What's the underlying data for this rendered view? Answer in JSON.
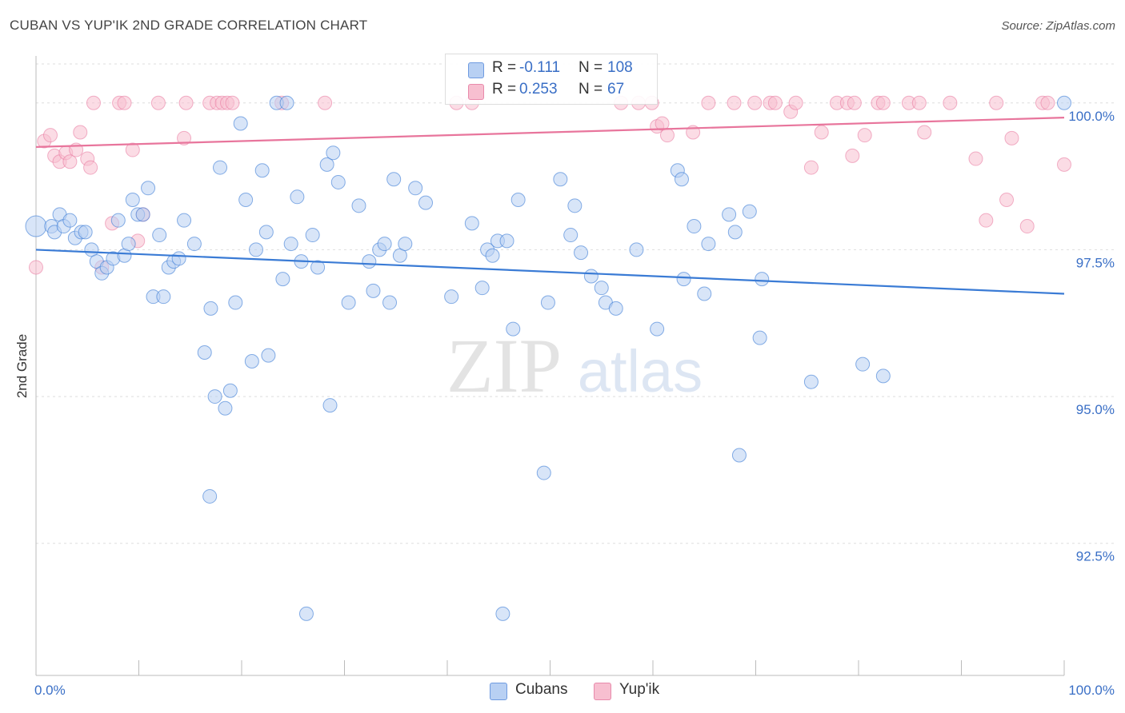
{
  "title": "CUBAN VS YUP'IK 2ND GRADE CORRELATION CHART",
  "source": "Source: ZipAtlas.com",
  "watermark": {
    "zip": "ZIP",
    "atlas": "atlas"
  },
  "colors": {
    "blue": "#3a7bd5",
    "blue_fill": "#b8d0f3",
    "pink": "#e8759c",
    "pink_fill": "#f7bfd0",
    "grid": "#dddddd"
  },
  "legend": {
    "rows": [
      {
        "r_label": "R =",
        "r_value": "-0.111",
        "n_label": "N =",
        "n_value": "108"
      },
      {
        "r_label": "R =",
        "r_value": "0.253",
        "n_label": "N =",
        "n_value": "67"
      }
    ]
  },
  "bottom_legend": {
    "cubans": "Cubans",
    "yupik": "Yup'ik"
  },
  "chart_data": {
    "type": "scatter",
    "title": "CUBAN VS YUP'IK 2ND GRADE CORRELATION CHART",
    "xlabel": "",
    "ylabel": "2nd Grade",
    "xlim": [
      0,
      100
    ],
    "ylim": [
      90.25,
      100.8
    ],
    "x_tick_labels": [
      "0.0%",
      "100.0%"
    ],
    "y_ticks": [
      92.5,
      95.0,
      97.5,
      100.0
    ],
    "y_tick_labels": [
      "92.5%",
      "95.0%",
      "97.5%",
      "100.0%"
    ],
    "legend_position": "top-center",
    "series": [
      {
        "name": "Cubans",
        "r": -0.111,
        "n": 108,
        "trend": {
          "x": [
            0,
            100
          ],
          "y": [
            97.5,
            96.75
          ]
        },
        "points": [
          [
            0,
            97.9
          ],
          [
            1.5,
            97.9
          ],
          [
            1.8,
            97.8
          ],
          [
            2.3,
            98.1
          ],
          [
            2.7,
            97.9
          ],
          [
            3.3,
            98.0
          ],
          [
            3.8,
            97.7
          ],
          [
            4.4,
            97.8
          ],
          [
            4.8,
            97.8
          ],
          [
            5.4,
            97.5
          ],
          [
            5.9,
            97.3
          ],
          [
            6.4,
            97.1
          ],
          [
            6.9,
            97.2
          ],
          [
            7.5,
            97.35
          ],
          [
            8.0,
            98.0
          ],
          [
            8.6,
            97.4
          ],
          [
            9.0,
            97.6
          ],
          [
            9.4,
            98.35
          ],
          [
            9.9,
            98.1
          ],
          [
            10.4,
            98.1
          ],
          [
            10.9,
            98.55
          ],
          [
            11.4,
            96.7
          ],
          [
            12.0,
            97.75
          ],
          [
            12.4,
            96.7
          ],
          [
            12.9,
            97.2
          ],
          [
            13.4,
            97.3
          ],
          [
            13.9,
            97.35
          ],
          [
            14.4,
            98.0
          ],
          [
            15.4,
            97.6
          ],
          [
            16.4,
            95.75
          ],
          [
            16.9,
            93.3
          ],
          [
            17.0,
            96.5
          ],
          [
            17.4,
            95.0
          ],
          [
            17.9,
            98.9
          ],
          [
            18.4,
            94.8
          ],
          [
            18.9,
            95.1
          ],
          [
            19.4,
            96.6
          ],
          [
            19.9,
            99.65
          ],
          [
            20.4,
            98.35
          ],
          [
            21.0,
            95.6
          ],
          [
            21.4,
            97.5
          ],
          [
            22.0,
            98.85
          ],
          [
            22.4,
            97.8
          ],
          [
            22.6,
            95.7
          ],
          [
            23.4,
            100.0
          ],
          [
            24.0,
            97.0
          ],
          [
            24.4,
            100.0
          ],
          [
            24.8,
            97.6
          ],
          [
            25.4,
            98.4
          ],
          [
            25.8,
            97.3
          ],
          [
            26.3,
            91.3
          ],
          [
            26.9,
            97.75
          ],
          [
            27.4,
            97.2
          ],
          [
            28.3,
            98.95
          ],
          [
            28.6,
            94.85
          ],
          [
            28.9,
            99.15
          ],
          [
            29.4,
            98.65
          ],
          [
            30.4,
            96.6
          ],
          [
            31.4,
            98.25
          ],
          [
            32.4,
            97.3
          ],
          [
            32.8,
            96.8
          ],
          [
            33.4,
            97.5
          ],
          [
            33.9,
            97.6
          ],
          [
            34.4,
            96.6
          ],
          [
            34.8,
            98.7
          ],
          [
            35.4,
            97.4
          ],
          [
            35.9,
            97.6
          ],
          [
            36.9,
            98.55
          ],
          [
            37.9,
            98.3
          ],
          [
            40.4,
            96.7
          ],
          [
            42.4,
            97.95
          ],
          [
            43.4,
            96.85
          ],
          [
            43.9,
            97.5
          ],
          [
            44.4,
            97.4
          ],
          [
            44.9,
            97.65
          ],
          [
            45.4,
            91.3
          ],
          [
            45.8,
            97.65
          ],
          [
            46.4,
            96.15
          ],
          [
            46.9,
            98.35
          ],
          [
            49.4,
            93.7
          ],
          [
            49.8,
            96.6
          ],
          [
            51.0,
            98.7
          ],
          [
            52.0,
            97.75
          ],
          [
            52.4,
            98.25
          ],
          [
            53.0,
            97.45
          ],
          [
            54.0,
            97.05
          ],
          [
            55.0,
            96.85
          ],
          [
            55.4,
            96.6
          ],
          [
            56.4,
            96.5
          ],
          [
            58.4,
            97.5
          ],
          [
            60.4,
            96.15
          ],
          [
            62.4,
            98.85
          ],
          [
            62.8,
            98.7
          ],
          [
            63.0,
            97.0
          ],
          [
            64.0,
            97.9
          ],
          [
            65.0,
            96.75
          ],
          [
            65.4,
            97.6
          ],
          [
            67.4,
            98.1
          ],
          [
            68.0,
            97.8
          ],
          [
            68.4,
            94.0
          ],
          [
            69.4,
            98.15
          ],
          [
            70.4,
            96.0
          ],
          [
            70.6,
            97.0
          ],
          [
            75.4,
            95.25
          ],
          [
            80.4,
            95.55
          ],
          [
            82.4,
            95.35
          ],
          [
            100.0,
            100.0
          ]
        ]
      },
      {
        "name": "Yup'ik",
        "r": 0.253,
        "n": 67,
        "trend": {
          "x": [
            0,
            100
          ],
          "y": [
            99.25,
            99.75
          ]
        },
        "points": [
          [
            0.0,
            97.2
          ],
          [
            0.8,
            99.35
          ],
          [
            1.4,
            99.45
          ],
          [
            1.8,
            99.1
          ],
          [
            2.3,
            99.0
          ],
          [
            2.9,
            99.15
          ],
          [
            3.3,
            99.0
          ],
          [
            3.9,
            99.2
          ],
          [
            4.3,
            99.5
          ],
          [
            5.0,
            99.05
          ],
          [
            5.3,
            98.9
          ],
          [
            6.4,
            97.2
          ],
          [
            7.4,
            97.95
          ],
          [
            9.4,
            99.2
          ],
          [
            9.9,
            97.65
          ],
          [
            10.4,
            98.1
          ],
          [
            14.4,
            99.4
          ],
          [
            5.6,
            100.0
          ],
          [
            8.1,
            100.0
          ],
          [
            8.6,
            100.0
          ],
          [
            11.9,
            100.0
          ],
          [
            14.6,
            100.0
          ],
          [
            16.9,
            100.0
          ],
          [
            17.6,
            100.0
          ],
          [
            18.1,
            100.0
          ],
          [
            18.6,
            100.0
          ],
          [
            19.1,
            100.0
          ],
          [
            23.9,
            100.0
          ],
          [
            28.1,
            100.0
          ],
          [
            40.9,
            100.0
          ],
          [
            42.4,
            100.0
          ],
          [
            56.9,
            100.0
          ],
          [
            58.6,
            100.0
          ],
          [
            59.9,
            100.0
          ],
          [
            60.4,
            99.6
          ],
          [
            60.9,
            99.65
          ],
          [
            61.4,
            99.45
          ],
          [
            63.9,
            99.5
          ],
          [
            65.4,
            100.0
          ],
          [
            67.9,
            100.0
          ],
          [
            69.9,
            100.0
          ],
          [
            71.4,
            100.0
          ],
          [
            71.9,
            100.0
          ],
          [
            73.4,
            99.85
          ],
          [
            73.9,
            100.0
          ],
          [
            75.4,
            98.9
          ],
          [
            76.4,
            99.5
          ],
          [
            77.9,
            100.0
          ],
          [
            78.9,
            100.0
          ],
          [
            79.6,
            100.0
          ],
          [
            79.4,
            99.1
          ],
          [
            80.6,
            99.45
          ],
          [
            81.9,
            100.0
          ],
          [
            82.4,
            100.0
          ],
          [
            84.9,
            100.0
          ],
          [
            85.9,
            100.0
          ],
          [
            86.4,
            99.5
          ],
          [
            88.9,
            100.0
          ],
          [
            91.4,
            99.05
          ],
          [
            92.4,
            98.0
          ],
          [
            93.4,
            100.0
          ],
          [
            94.4,
            98.35
          ],
          [
            94.9,
            99.4
          ],
          [
            96.4,
            97.9
          ],
          [
            97.9,
            100.0
          ],
          [
            98.4,
            100.0
          ],
          [
            100.0,
            98.95
          ]
        ]
      }
    ]
  }
}
